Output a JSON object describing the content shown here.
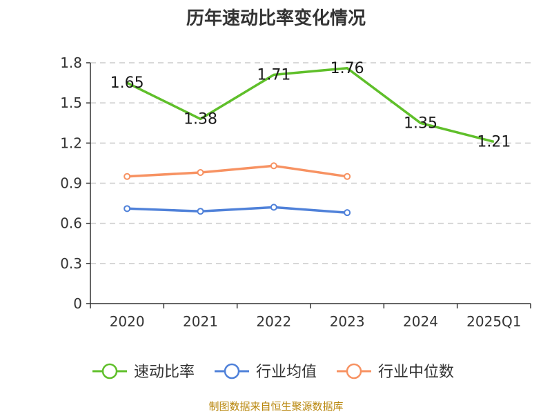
{
  "chart_data": {
    "type": "line",
    "title": "历年速动比率变化情况",
    "categories": [
      "2020",
      "2021",
      "2022",
      "2023",
      "2024",
      "2025Q1"
    ],
    "y_ticks": [
      "0",
      "0.3",
      "0.6",
      "0.9",
      "1.2",
      "1.5",
      "1.8"
    ],
    "ylim": [
      0,
      1.8
    ],
    "grid": true,
    "legend_position": "bottom",
    "series": [
      {
        "name": "速动比率",
        "color": "#5fbf2a",
        "values": [
          1.65,
          1.38,
          1.71,
          1.76,
          1.35,
          1.21
        ],
        "labels": [
          "1.65",
          "1.38",
          "1.71",
          "1.76",
          "1.35",
          "1.21"
        ],
        "show_points": false
      },
      {
        "name": "行业均值",
        "color": "#4f81d9",
        "values": [
          0.71,
          0.69,
          0.72,
          0.68,
          null,
          null
        ],
        "show_points": true
      },
      {
        "name": "行业中位数",
        "color": "#f79262",
        "values": [
          0.95,
          0.98,
          1.03,
          0.95,
          null,
          null
        ],
        "show_points": true
      }
    ]
  },
  "source_note": "制图数据来自恒生聚源数据库"
}
